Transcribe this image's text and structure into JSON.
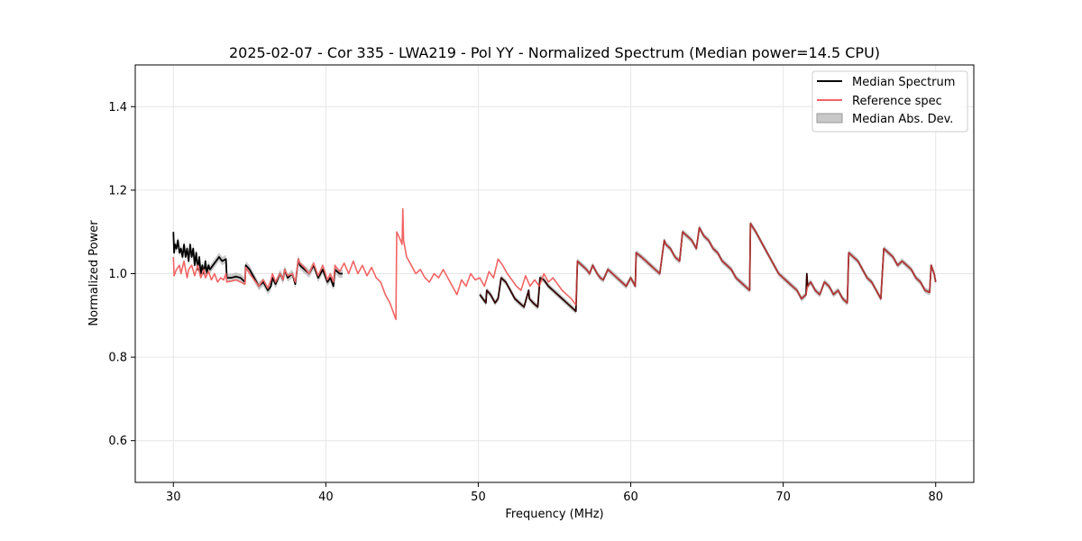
{
  "chart_data": {
    "type": "line",
    "title": "2025-02-07 - Cor 335 - LWA219 - Pol YY - Normalized Spectrum (Median power=14.5 CPU)",
    "xlabel": "Frequency (MHz)",
    "ylabel": "Normalized Power",
    "xlim": [
      27.5,
      82.5
    ],
    "ylim": [
      0.5,
      1.5
    ],
    "xticks": [
      30,
      40,
      50,
      60,
      70,
      80
    ],
    "yticks": [
      0.6,
      0.8,
      1.0,
      1.2,
      1.4
    ],
    "xtick_labels": [
      "30",
      "40",
      "50",
      "60",
      "70",
      "80"
    ],
    "ytick_labels": [
      "0.6",
      "0.8",
      "1.0",
      "1.2",
      "1.4"
    ],
    "grid": true,
    "legend_position": "top-right",
    "legend": [
      "Median Spectrum",
      "Reference spec",
      "Median Abs. Dev."
    ],
    "colors": {
      "median": "#000000",
      "reference": "#f26565",
      "mad": "#bdbdbd",
      "grid": "#e6e6e6",
      "axis": "#000000"
    },
    "series": [
      {
        "name": "Median Spectrum",
        "x": [
          30.0,
          30.05,
          30.1,
          30.2,
          30.3,
          30.4,
          30.5,
          30.6,
          30.7,
          30.8,
          30.9,
          31.0,
          31.1,
          31.2,
          31.3,
          31.4,
          31.5,
          31.6,
          31.7,
          31.8,
          31.9,
          32.0,
          32.1,
          32.2,
          32.3,
          32.4,
          32.6,
          32.8,
          33.0,
          33.2,
          33.45,
          33.5,
          33.8,
          34.1,
          34.4,
          34.7,
          34.75,
          35.0,
          35.3,
          35.6,
          35.9,
          36.2,
          36.4,
          36.5,
          36.7,
          37.0,
          37.2,
          37.3,
          37.5,
          37.8,
          38.0,
          38.2,
          38.3,
          38.6,
          38.9,
          39.2,
          39.5,
          39.8,
          40.1,
          40.3,
          40.5,
          40.6,
          40.9,
          41.1
        ],
        "y": [
          1.1,
          1.05,
          1.07,
          1.06,
          1.08,
          1.05,
          1.06,
          1.04,
          1.07,
          1.04,
          1.06,
          1.03,
          1.07,
          1.04,
          1.06,
          1.02,
          1.05,
          1.01,
          1.04,
          1.0,
          1.02,
          1.0,
          1.03,
          1.0,
          1.02,
          1.01,
          1.02,
          1.03,
          1.04,
          1.03,
          1.035,
          0.99,
          0.99,
          0.993,
          0.99,
          0.98,
          1.02,
          1.01,
          0.99,
          0.97,
          0.98,
          0.96,
          0.97,
          0.99,
          0.975,
          1.0,
          0.985,
          1.01,
          0.99,
          1.0,
          0.975,
          1.035,
          1.02,
          1.01,
          1.0,
          1.02,
          0.99,
          1.01,
          0.98,
          0.99,
          0.97,
          1.01,
          1.0,
          1.0
        ]
      },
      {
        "name": "Median Spectrum",
        "x": [
          50.1,
          50.3,
          50.5,
          50.55,
          50.8,
          51.1,
          51.3,
          51.5,
          51.8,
          52.1,
          52.4,
          52.7,
          53.0,
          53.3,
          53.35,
          53.6,
          53.9,
          54.05,
          54.3,
          54.6,
          54.9,
          55.2,
          55.5,
          55.8,
          56.1,
          56.4,
          56.5,
          56.8,
          57.1,
          57.3,
          57.5,
          57.8,
          58.0,
          58.2,
          58.5,
          58.8,
          59.1,
          59.4,
          59.7,
          60.0,
          60.3,
          60.35,
          60.7,
          61.0,
          61.3,
          61.6,
          61.9,
          62.2,
          62.3,
          62.6,
          62.9,
          63.2,
          63.4,
          63.7,
          64.0,
          64.3,
          64.5,
          64.8,
          65.1,
          65.4,
          65.7,
          66.0,
          66.3,
          66.6,
          66.9,
          67.2,
          67.5,
          67.8,
          67.85,
          68.2,
          68.5,
          68.8,
          69.1,
          69.4,
          69.7,
          70.0,
          70.3,
          70.6,
          70.9,
          71.2,
          71.5,
          71.55,
          71.6,
          71.8,
          72.1,
          72.4,
          72.7,
          73.0,
          73.3,
          73.6,
          73.9,
          74.2,
          74.3,
          74.6,
          74.9,
          75.2,
          75.5,
          75.8,
          76.1,
          76.4,
          76.6,
          76.9,
          77.2,
          77.5,
          77.8,
          78.1,
          78.4,
          78.7,
          79.0,
          79.3,
          79.6,
          79.7,
          79.9,
          80.0
        ],
        "y": [
          0.95,
          0.94,
          0.93,
          0.96,
          0.95,
          0.93,
          0.94,
          0.99,
          0.98,
          0.96,
          0.94,
          0.93,
          0.92,
          0.96,
          0.94,
          0.93,
          0.92,
          0.99,
          0.985,
          0.97,
          0.96,
          0.95,
          0.94,
          0.93,
          0.92,
          0.91,
          1.03,
          1.02,
          1.01,
          1.0,
          1.02,
          1.0,
          0.99,
          0.985,
          1.01,
          1.0,
          0.99,
          0.98,
          0.97,
          0.99,
          0.97,
          1.05,
          1.04,
          1.03,
          1.02,
          1.01,
          1.0,
          1.08,
          1.07,
          1.06,
          1.04,
          1.03,
          1.1,
          1.09,
          1.08,
          1.06,
          1.11,
          1.09,
          1.08,
          1.06,
          1.05,
          1.03,
          1.02,
          1.01,
          0.99,
          0.98,
          0.97,
          0.96,
          1.12,
          1.1,
          1.08,
          1.06,
          1.04,
          1.02,
          1.0,
          0.99,
          0.98,
          0.97,
          0.96,
          0.94,
          0.95,
          1.0,
          0.97,
          0.98,
          0.96,
          0.95,
          0.98,
          0.97,
          0.95,
          0.96,
          0.94,
          0.93,
          1.05,
          1.04,
          1.03,
          1.01,
          0.99,
          0.98,
          0.96,
          0.94,
          1.06,
          1.05,
          1.04,
          1.02,
          1.03,
          1.02,
          1.01,
          0.99,
          0.98,
          0.96,
          0.955,
          1.02,
          1.0,
          0.98
        ],
        "mad": 0.007
      },
      {
        "name": "Reference spec",
        "x": [
          30.0,
          30.05,
          30.2,
          30.4,
          30.5,
          30.7,
          30.9,
          31.0,
          31.2,
          31.4,
          31.6,
          31.8,
          32.0,
          32.1,
          32.3,
          32.5,
          32.7,
          32.9,
          33.1,
          33.3,
          33.45,
          33.5,
          33.8,
          34.1,
          34.4,
          34.7,
          34.75,
          35.0,
          35.3,
          35.6,
          35.9,
          36.2,
          36.4,
          36.5,
          36.7,
          37.0,
          37.2,
          37.3,
          37.5,
          37.8,
          38.0,
          38.2,
          38.3,
          38.6,
          38.9,
          39.2,
          39.5,
          39.8,
          40.1,
          40.3,
          40.5,
          40.6,
          40.9,
          41.2,
          41.5,
          41.8,
          42.1,
          42.4,
          42.7,
          43.0,
          43.3,
          43.6,
          43.9,
          44.2,
          44.6,
          44.65,
          44.9,
          45.0,
          45.05,
          45.1,
          45.3,
          45.6,
          45.9,
          46.2,
          46.5,
          46.8,
          47.1,
          47.4,
          47.7,
          48.0,
          48.3,
          48.6,
          48.9,
          49.2,
          49.5,
          49.8,
          50.1,
          50.4,
          50.7,
          51.0,
          51.3,
          51.6,
          51.9,
          52.2,
          52.5,
          52.8,
          53.1,
          53.4,
          53.7,
          54.0,
          54.3,
          54.6,
          54.9,
          55.2,
          55.5,
          55.8,
          56.1,
          56.4,
          56.5,
          56.8,
          57.1,
          57.3,
          57.5,
          57.8,
          58.0,
          58.2,
          58.5,
          58.8,
          59.1,
          59.4,
          59.7,
          60.0,
          60.3,
          60.35,
          60.7,
          61.0,
          61.3,
          61.6,
          61.9,
          62.2,
          62.3,
          62.6,
          62.9,
          63.2,
          63.4,
          63.7,
          64.0,
          64.3,
          64.5,
          64.8,
          65.1,
          65.4,
          65.7,
          66.0,
          66.3,
          66.6,
          66.9,
          67.2,
          67.5,
          67.8,
          67.85,
          68.2,
          68.5,
          68.8,
          69.1,
          69.4,
          69.7,
          70.0,
          70.3,
          70.6,
          70.9,
          71.2,
          71.5,
          71.6,
          71.8,
          72.1,
          72.4,
          72.7,
          73.0,
          73.3,
          73.6,
          73.9,
          74.2,
          74.3,
          74.6,
          74.9,
          75.2,
          75.5,
          75.8,
          76.1,
          76.4,
          76.6,
          76.9,
          77.2,
          77.5,
          77.8,
          78.1,
          78.4,
          78.7,
          79.0,
          79.3,
          79.6,
          79.7,
          79.9,
          80.0
        ],
        "y": [
          1.04,
          0.995,
          1.01,
          1.02,
          1.0,
          1.03,
          0.99,
          1.01,
          1.02,
          0.995,
          1.02,
          0.99,
          1.01,
          0.99,
          1.005,
          0.985,
          1.0,
          0.98,
          0.99,
          0.985,
          1.0,
          0.98,
          0.982,
          0.985,
          0.98,
          0.975,
          1.015,
          1.0,
          0.985,
          0.97,
          0.985,
          0.965,
          0.985,
          1.0,
          0.98,
          1.0,
          0.985,
          1.01,
          0.995,
          1.0,
          0.98,
          1.035,
          1.025,
          1.015,
          1.0,
          1.025,
          0.995,
          1.02,
          0.985,
          1.0,
          0.98,
          1.02,
          1.005,
          1.025,
          1.0,
          1.03,
          1.0,
          1.02,
          0.995,
          1.015,
          0.99,
          0.98,
          0.95,
          0.93,
          0.89,
          1.1,
          1.08,
          1.07,
          1.155,
          1.08,
          1.04,
          1.02,
          1.0,
          1.01,
          0.99,
          0.98,
          1.0,
          0.99,
          1.01,
          0.99,
          0.97,
          0.95,
          0.985,
          0.97,
          1.0,
          0.985,
          0.99,
          0.97,
          1.005,
          0.99,
          1.035,
          1.02,
          1.0,
          0.985,
          0.97,
          0.96,
          0.995,
          0.97,
          0.985,
          0.97,
          1.0,
          0.98,
          0.99,
          0.975,
          0.96,
          0.95,
          0.94,
          0.925,
          1.03,
          1.02,
          1.01,
          1.0,
          1.02,
          1.0,
          0.99,
          0.985,
          1.01,
          1.0,
          0.99,
          0.98,
          0.97,
          0.99,
          0.97,
          1.05,
          1.04,
          1.03,
          1.02,
          1.01,
          1.0,
          1.08,
          1.07,
          1.06,
          1.04,
          1.03,
          1.1,
          1.09,
          1.08,
          1.06,
          1.11,
          1.09,
          1.08,
          1.06,
          1.05,
          1.03,
          1.02,
          1.01,
          0.99,
          0.98,
          0.97,
          0.96,
          1.12,
          1.1,
          1.08,
          1.06,
          1.04,
          1.02,
          1.0,
          0.99,
          0.98,
          0.97,
          0.96,
          0.94,
          0.95,
          0.97,
          0.98,
          0.96,
          0.95,
          0.98,
          0.97,
          0.95,
          0.96,
          0.94,
          0.93,
          1.05,
          1.04,
          1.03,
          1.01,
          0.99,
          0.98,
          0.96,
          0.94,
          1.06,
          1.05,
          1.04,
          1.02,
          1.03,
          1.02,
          1.01,
          0.99,
          0.98,
          0.96,
          0.955,
          1.02,
          1.0,
          0.98
        ]
      }
    ]
  }
}
